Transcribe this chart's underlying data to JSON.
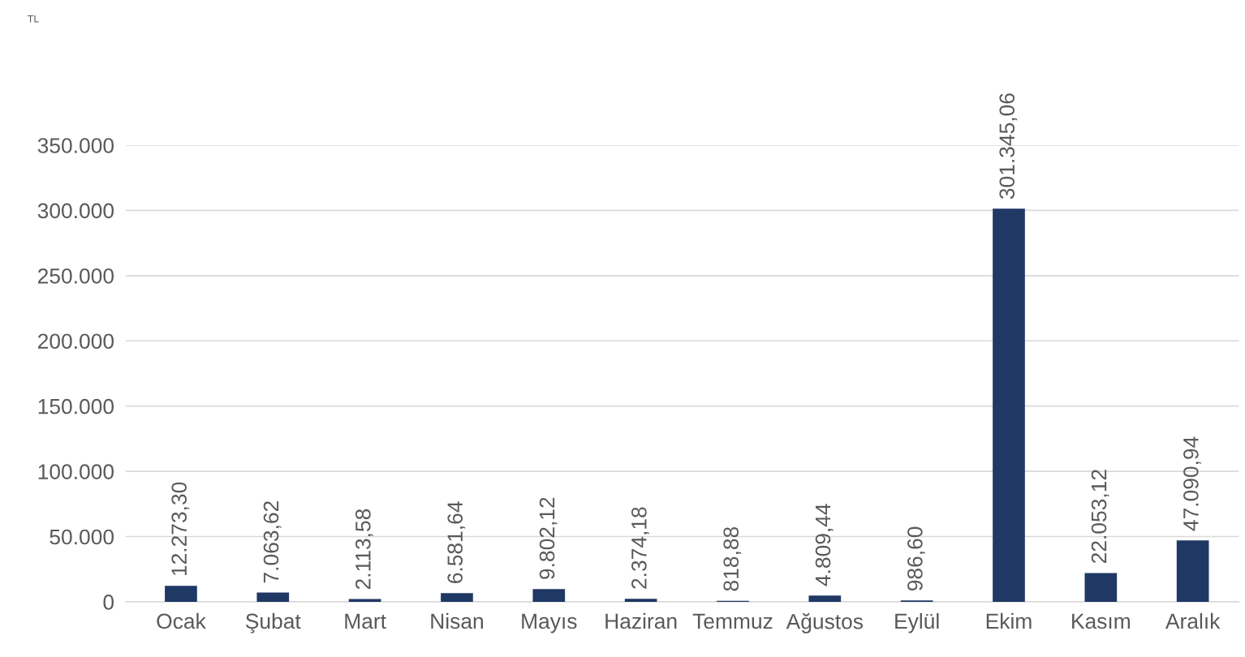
{
  "chart_data": {
    "type": "bar",
    "annotations": [
      "TL"
    ],
    "categories": [
      "Ocak",
      "Şubat",
      "Mart",
      "Nisan",
      "Mayıs",
      "Haziran",
      "Temmuz",
      "Ağustos",
      "Eylül",
      "Ekim",
      "Kasım",
      "Aralık"
    ],
    "values": [
      12273.3,
      7063.62,
      2113.58,
      6581.64,
      9802.12,
      2374.18,
      818.88,
      4809.44,
      986.6,
      301345.06,
      22053.12,
      47090.94
    ],
    "value_labels": [
      "12.273,30",
      "7.063,62",
      "2.113,58",
      "6.581,64",
      "9.802,12",
      "2.374,18",
      "818,88",
      "4.809,44",
      "986,60",
      "301.345,06",
      "22.053,12",
      "47.090,94"
    ],
    "color": "#1f3864",
    "ylim": [
      0,
      350000
    ],
    "yticks": [
      {
        "value": 0,
        "label": "0"
      },
      {
        "value": 50000,
        "label": "50.000"
      },
      {
        "value": 100000,
        "label": "100.000"
      },
      {
        "value": 150000,
        "label": "150.000"
      },
      {
        "value": 200000,
        "label": "200.000"
      },
      {
        "value": 250000,
        "label": "250.000"
      },
      {
        "value": 300000,
        "label": "300.000"
      },
      {
        "value": 350000,
        "label": "350.000"
      }
    ],
    "grid": "y",
    "legend": false
  }
}
